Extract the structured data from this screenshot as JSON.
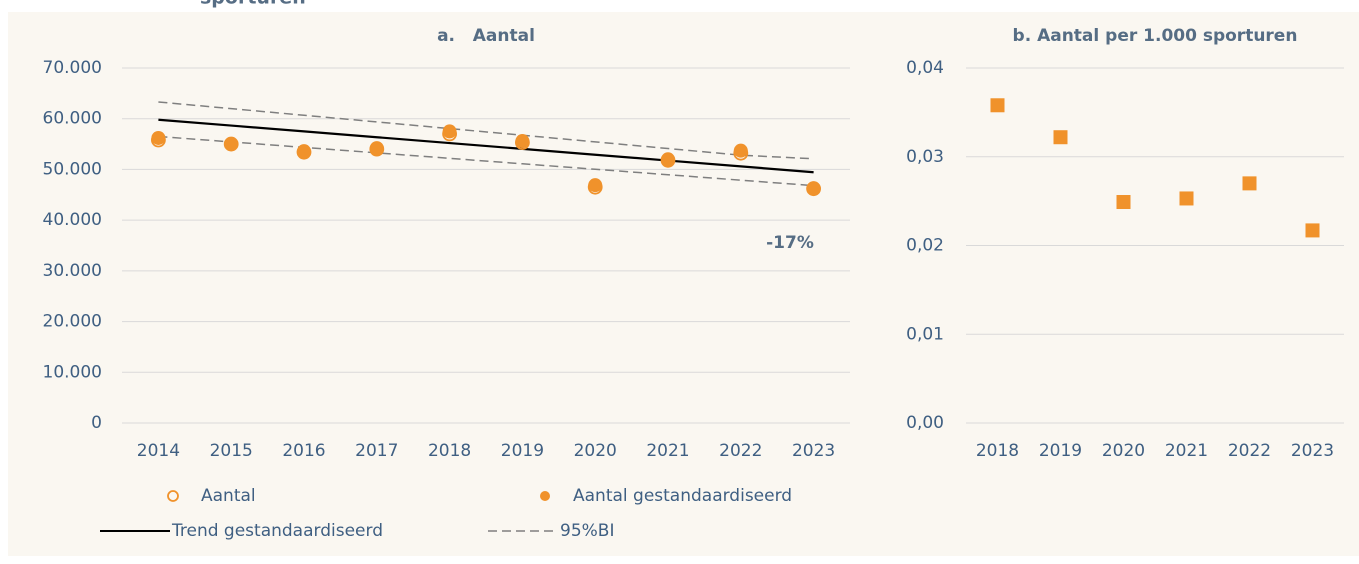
{
  "header_text": "sporturen",
  "chart_data": [
    {
      "type": "line",
      "title": "a.   Aantal",
      "categories": [
        "2014",
        "2015",
        "2016",
        "2017",
        "2018",
        "2019",
        "2020",
        "2021",
        "2022",
        "2023"
      ],
      "ylim": [
        0,
        70000
      ],
      "yticks": [
        0,
        {
          "value": 10000,
          "label": "10.000"
        },
        {
          "value": 20000,
          "label": "20.000"
        },
        {
          "value": 30000,
          "label": "30.000"
        },
        {
          "value": 40000,
          "label": "40.000"
        },
        {
          "value": 50000,
          "label": "50.000"
        },
        {
          "value": 60000,
          "label": "60.000"
        },
        {
          "value": 70000,
          "label": "70.000"
        }
      ],
      "grid": true,
      "annotation": "-17%",
      "series": [
        {
          "name": "Aantal",
          "color": "#f0922b",
          "marker": "circle-open",
          "values": [
            55800,
            55000,
            53400,
            54000,
            57000,
            55300,
            46500,
            51800,
            53200,
            46200
          ]
        },
        {
          "name": "Aantal gestandaardiseerd",
          "color": "#f0922b",
          "marker": "circle",
          "values": [
            56200,
            55000,
            53600,
            54200,
            57500,
            55600,
            46900,
            52000,
            53700,
            46300
          ]
        },
        {
          "name": "Trend gestandaardiseerd",
          "color": "#000000",
          "line": "solid",
          "values": [
            59800,
            58650,
            57500,
            56350,
            55200,
            54050,
            52900,
            51750,
            50600,
            49450
          ]
        },
        {
          "name": "95%BI",
          "color": "#7f7f7f",
          "line": "dashed",
          "upper": [
            63300,
            61989,
            60678,
            59367,
            58056,
            56744,
            55433,
            54122,
            52811,
            52100
          ],
          "lower": [
            56500,
            55422,
            54344,
            53267,
            52189,
            51111,
            50033,
            48956,
            47878,
            46800
          ]
        }
      ]
    },
    {
      "type": "scatter",
      "title": "b. Aantal per 1.000 sporturen",
      "categories": [
        "2018",
        "2019",
        "2020",
        "2021",
        "2022",
        "2023"
      ],
      "ylim": [
        0,
        0.04
      ],
      "yticks": [
        {
          "value": 0,
          "label": "0,00"
        },
        {
          "value": 0.01,
          "label": "0,01"
        },
        {
          "value": 0.02,
          "label": "0,02"
        },
        {
          "value": 0.03,
          "label": "0,03"
        },
        {
          "value": 0.04,
          "label": "0,04"
        }
      ],
      "grid": true,
      "series": [
        {
          "color": "#f0922b",
          "marker": "square",
          "values": [
            0.0358,
            0.0322,
            0.0249,
            0.0253,
            0.027,
            0.0217
          ]
        }
      ]
    }
  ]
}
